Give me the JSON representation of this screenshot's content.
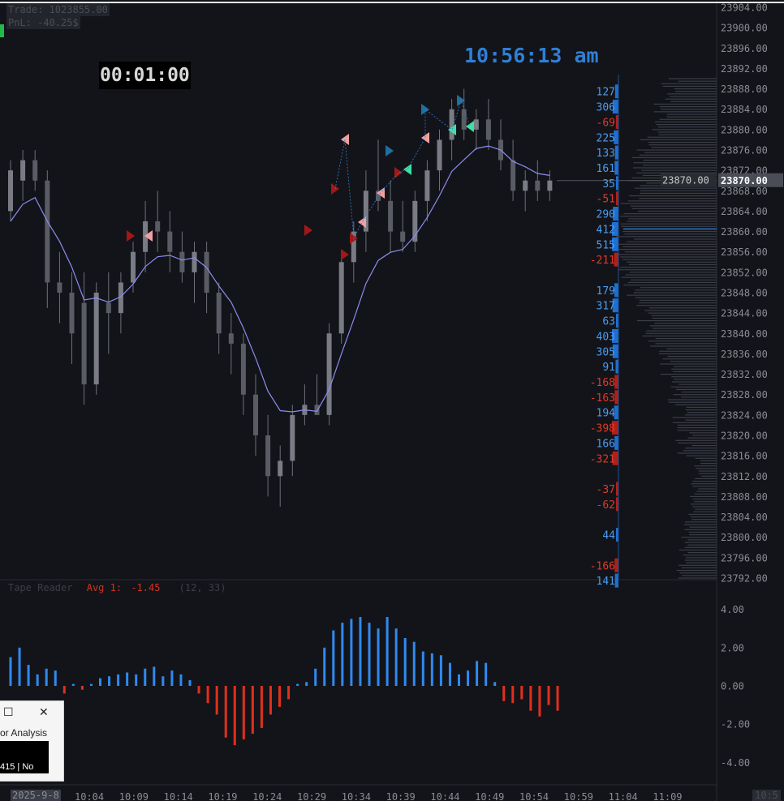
{
  "header": {
    "trade_label": "Trade: 1023855.00",
    "pnl_label": "PnL: -40.25$",
    "bar_timer": "00:01:00",
    "clock": "10:56:13 am"
  },
  "colors": {
    "background": "#131419",
    "up": "#2f7fd6",
    "down": "#d0341f",
    "candle": "#6e7079",
    "ema": "#8c8cf0",
    "profile": "#3a3e48",
    "signal_dark_red": "#a01818",
    "signal_pink": "#f0a0a0",
    "signal_blue": "#1f6f9f",
    "signal_green": "#40e0a0"
  },
  "price_axis": {
    "labels": [
      "23904.00",
      "23900.00",
      "23896.00",
      "23892.00",
      "23888.00",
      "23884.00",
      "23880.00",
      "23876.00",
      "23872.00",
      "23868.00",
      "23864.00",
      "23860.00",
      "23856.00",
      "23852.00",
      "23848.00",
      "23844.00",
      "23840.00",
      "23836.00",
      "23832.00",
      "23828.00",
      "23824.00",
      "23820.00",
      "23816.00",
      "23812.00",
      "23808.00",
      "23804.00",
      "23800.00",
      "23796.00",
      "23792.00"
    ],
    "min": 23792,
    "max": 23904,
    "last_price": "23870.00",
    "last_price_value": 23870,
    "poc_price": 23860.5
  },
  "time_axis": {
    "date": "2025-9-8",
    "labels": [
      "10:04",
      "10:09",
      "10:14",
      "10:19",
      "10:24",
      "10:29",
      "10:34",
      "10:39",
      "10:44",
      "10:49",
      "10:54",
      "10:59",
      "11:04",
      "11:09"
    ],
    "corner": "10:5"
  },
  "delta_ladder": [
    {
      "price": 23887.5,
      "value": "127",
      "v": 127
    },
    {
      "price": 23884.5,
      "value": "306",
      "v": 306
    },
    {
      "price": 23881.5,
      "value": "-69",
      "v": -69
    },
    {
      "price": 23878.5,
      "value": "225",
      "v": 225
    },
    {
      "price": 23875.5,
      "value": "133",
      "v": 133
    },
    {
      "price": 23872.5,
      "value": "161",
      "v": 161
    },
    {
      "price": 23869.5,
      "value": "35",
      "v": 35
    },
    {
      "price": 23866.5,
      "value": "-51",
      "v": -51
    },
    {
      "price": 23863.5,
      "value": "290",
      "v": 290
    },
    {
      "price": 23860.5,
      "value": "412",
      "v": 412
    },
    {
      "price": 23857.5,
      "value": "515",
      "v": 515
    },
    {
      "price": 23854.5,
      "value": "-211",
      "v": -211
    },
    {
      "price": 23848.5,
      "value": "179",
      "v": 179
    },
    {
      "price": 23845.5,
      "value": "317",
      "v": 317
    },
    {
      "price": 23842.5,
      "value": "63",
      "v": 63
    },
    {
      "price": 23839.5,
      "value": "403",
      "v": 403
    },
    {
      "price": 23836.5,
      "value": "305",
      "v": 305
    },
    {
      "price": 23833.5,
      "value": "91",
      "v": 91
    },
    {
      "price": 23830.5,
      "value": "-168",
      "v": -168
    },
    {
      "price": 23827.5,
      "value": "-163",
      "v": -163
    },
    {
      "price": 23824.5,
      "value": "194",
      "v": 194
    },
    {
      "price": 23821.5,
      "value": "-398",
      "v": -398
    },
    {
      "price": 23818.5,
      "value": "166",
      "v": 166
    },
    {
      "price": 23815.5,
      "value": "-321",
      "v": -321
    },
    {
      "price": 23809.5,
      "value": "-37",
      "v": -37
    },
    {
      "price": 23806.5,
      "value": "-62",
      "v": -62
    },
    {
      "price": 23800.5,
      "value": "44",
      "v": 44
    },
    {
      "price": 23794.5,
      "value": "-166",
      "v": -166
    },
    {
      "price": 23791.5,
      "value": "141",
      "v": 141
    }
  ],
  "indicator": {
    "title": "Tape Reader",
    "avg_label": "Avg 1:",
    "avg_value": "-1.45",
    "params": "(12, 33)",
    "axis_labels": [
      "4.00",
      "2.00",
      "0.00",
      "-2.00",
      "-4.00"
    ],
    "axis_values": [
      4,
      2,
      0,
      -2,
      -4
    ],
    "bars": [
      1.5,
      2.0,
      1.1,
      0.6,
      0.9,
      0.8,
      -0.4,
      0.1,
      -0.2,
      0.1,
      0.4,
      0.5,
      0.6,
      0.7,
      0.6,
      0.9,
      1.0,
      0.5,
      0.8,
      0.6,
      0.3,
      -0.4,
      -0.9,
      -1.5,
      -2.7,
      -3.1,
      -2.8,
      -2.5,
      -2.2,
      -1.5,
      -1.1,
      -0.7,
      0.1,
      0.2,
      0.9,
      2.0,
      2.9,
      3.3,
      3.5,
      3.6,
      3.3,
      3.0,
      3.6,
      3.0,
      2.5,
      2.3,
      1.8,
      1.7,
      1.6,
      1.2,
      0.6,
      0.8,
      1.3,
      1.2,
      0.2,
      -0.8,
      -0.9,
      -0.7,
      -1.3,
      -1.6,
      -1.0,
      -1.3
    ]
  },
  "candles": [
    {
      "o": 23864.0,
      "h": 23874.0,
      "l": 23862.0,
      "c": 23872.0
    },
    {
      "o": 23870.0,
      "h": 23876.0,
      "l": 23866.0,
      "c": 23874.0
    },
    {
      "o": 23874.0,
      "h": 23876.0,
      "l": 23868.0,
      "c": 23870.0
    },
    {
      "o": 23870.0,
      "h": 23872.0,
      "l": 23845.0,
      "c": 23850.0
    },
    {
      "o": 23850.0,
      "h": 23856.0,
      "l": 23842.0,
      "c": 23848.0
    },
    {
      "o": 23848.0,
      "h": 23852.0,
      "l": 23834.0,
      "c": 23840.0
    },
    {
      "o": 23846.0,
      "h": 23852.0,
      "l": 23826.0,
      "c": 23830.0
    },
    {
      "o": 23830.0,
      "h": 23850.0,
      "l": 23828.0,
      "c": 23848.0
    },
    {
      "o": 23846.0,
      "h": 23852.0,
      "l": 23836.0,
      "c": 23844.0
    },
    {
      "o": 23844.0,
      "h": 23852.0,
      "l": 23840.0,
      "c": 23850.0
    },
    {
      "o": 23850.0,
      "h": 23858.0,
      "l": 23848.0,
      "c": 23856.0
    },
    {
      "o": 23856.0,
      "h": 23866.0,
      "l": 23852.0,
      "c": 23862.0
    },
    {
      "o": 23862.0,
      "h": 23868.0,
      "l": 23856.0,
      "c": 23860.0
    },
    {
      "o": 23860.0,
      "h": 23864.0,
      "l": 23852.0,
      "c": 23856.0
    },
    {
      "o": 23856.0,
      "h": 23860.0,
      "l": 23850.0,
      "c": 23852.0
    },
    {
      "o": 23852.0,
      "h": 23858.0,
      "l": 23846.0,
      "c": 23856.0
    },
    {
      "o": 23856.0,
      "h": 23858.0,
      "l": 23844.0,
      "c": 23848.0
    },
    {
      "o": 23848.0,
      "h": 23850.0,
      "l": 23836.0,
      "c": 23840.0
    },
    {
      "o": 23840.0,
      "h": 23844.0,
      "l": 23832.0,
      "c": 23838.0
    },
    {
      "o": 23838.0,
      "h": 23840.0,
      "l": 23824.0,
      "c": 23828.0
    },
    {
      "o": 23828.0,
      "h": 23832.0,
      "l": 23816.0,
      "c": 23820.0
    },
    {
      "o": 23820.0,
      "h": 23824.0,
      "l": 23808.0,
      "c": 23812.0
    },
    {
      "o": 23812.0,
      "h": 23818.0,
      "l": 23806.0,
      "c": 23815.0
    },
    {
      "o": 23815.0,
      "h": 23826.0,
      "l": 23812.0,
      "c": 23824.0
    },
    {
      "o": 23824.0,
      "h": 23830.0,
      "l": 23822.0,
      "c": 23826.0
    },
    {
      "o": 23826.0,
      "h": 23832.0,
      "l": 23824.0,
      "c": 23824.0
    },
    {
      "o": 23824.0,
      "h": 23842.0,
      "l": 23822.0,
      "c": 23840.0
    },
    {
      "o": 23840.0,
      "h": 23856.0,
      "l": 23838.0,
      "c": 23854.0
    },
    {
      "o": 23854.0,
      "h": 23862.0,
      "l": 23850.0,
      "c": 23860.0
    },
    {
      "o": 23860.0,
      "h": 23872.0,
      "l": 23856.0,
      "c": 23868.0
    },
    {
      "o": 23868.0,
      "h": 23878.0,
      "l": 23864.0,
      "c": 23866.0
    },
    {
      "o": 23866.0,
      "h": 23870.0,
      "l": 23856.0,
      "c": 23860.0
    },
    {
      "o": 23860.0,
      "h": 23866.0,
      "l": 23856.0,
      "c": 23858.0
    },
    {
      "o": 23858.0,
      "h": 23868.0,
      "l": 23856.0,
      "c": 23866.0
    },
    {
      "o": 23866.0,
      "h": 23874.0,
      "l": 23862.0,
      "c": 23872.0
    },
    {
      "o": 23872.0,
      "h": 23880.0,
      "l": 23868.0,
      "c": 23878.0
    },
    {
      "o": 23878.0,
      "h": 23886.0,
      "l": 23874.0,
      "c": 23884.0
    },
    {
      "o": 23884.0,
      "h": 23888.0,
      "l": 23878.0,
      "c": 23880.0
    },
    {
      "o": 23880.0,
      "h": 23884.0,
      "l": 23876.0,
      "c": 23882.0
    },
    {
      "o": 23882.0,
      "h": 23886.0,
      "l": 23876.0,
      "c": 23878.0
    },
    {
      "o": 23878.0,
      "h": 23882.0,
      "l": 23872.0,
      "c": 23874.0
    },
    {
      "o": 23874.0,
      "h": 23878.0,
      "l": 23866.0,
      "c": 23868.0
    },
    {
      "o": 23868.0,
      "h": 23872.0,
      "l": 23864.0,
      "c": 23870.0
    },
    {
      "o": 23870.0,
      "h": 23874.0,
      "l": 23866.0,
      "c": 23868.0
    },
    {
      "o": 23868.0,
      "h": 23872.0,
      "l": 23866.0,
      "c": 23870.0
    }
  ]
}
